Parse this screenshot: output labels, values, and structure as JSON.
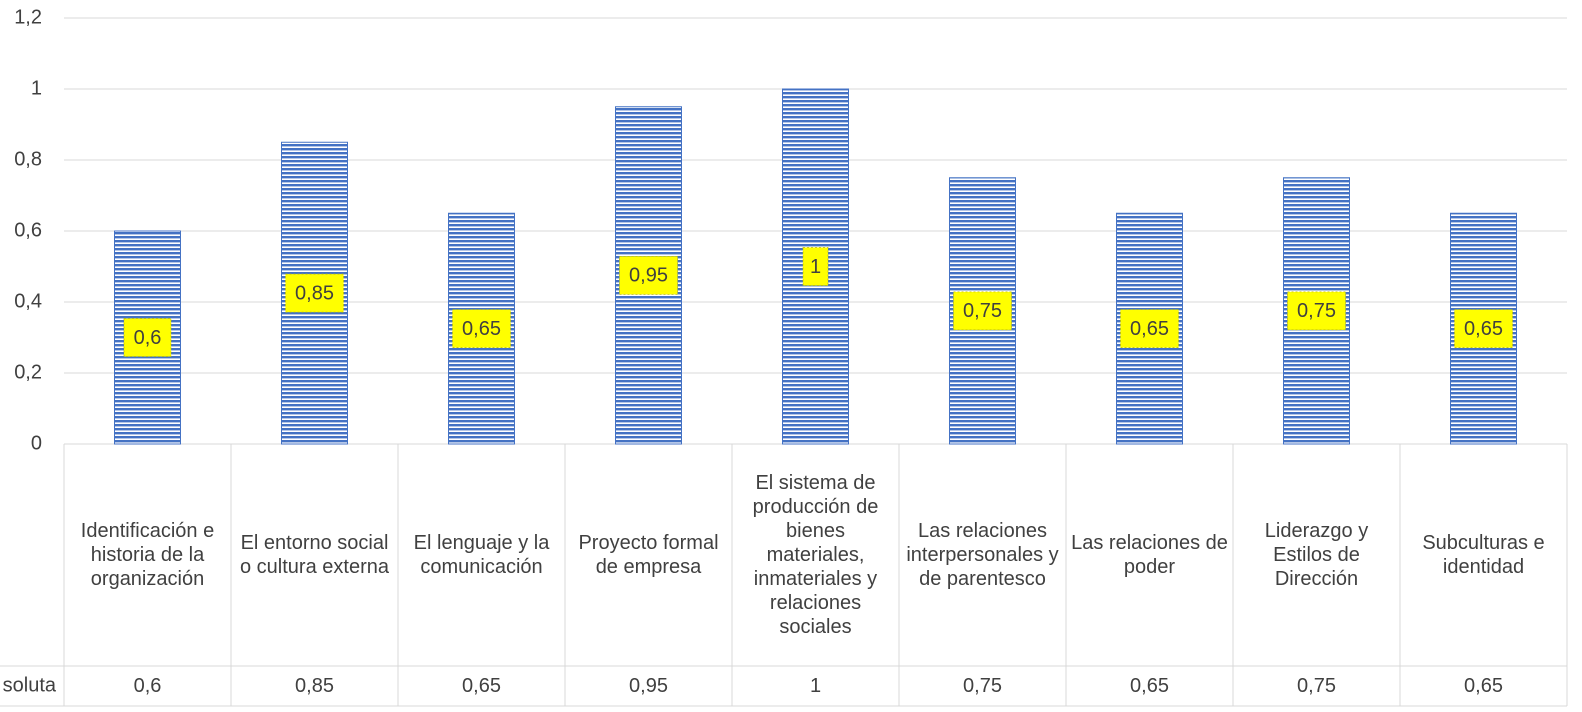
{
  "chart_data": {
    "type": "bar",
    "categories": [
      "Identificación e historia de la organización",
      "El entorno social o cultura externa",
      "El lenguaje y la comunicación",
      "Proyecto formal de empresa",
      "El sistema de producción de bienes materiales, inmateriales y relaciones sociales",
      "Las relaciones interpersonales y de parentesco",
      "Las relaciones de poder",
      "Liderazgo y Estilos de Dirección",
      "Subculturas e identidad"
    ],
    "series": [
      {
        "name": "soluta",
        "color": "#4472c4",
        "values": [
          0.6,
          0.85,
          0.65,
          0.95,
          1,
          0.75,
          0.65,
          0.75,
          0.65
        ],
        "value_labels": [
          "0,6",
          "0,85",
          "0,65",
          "0,95",
          "1",
          "0,75",
          "0,65",
          "0,75",
          "0,65"
        ]
      }
    ],
    "ylim": [
      0,
      1.2
    ],
    "yticks": [
      0,
      {
        "value": 0.2,
        "label": "0,2"
      },
      {
        "value": 0.4,
        "label": "0,4"
      },
      {
        "value": 0.6,
        "label": "0,6"
      },
      {
        "value": 0.8,
        "label": "0,8"
      },
      1,
      {
        "value": 1.2,
        "label": "1,2"
      }
    ],
    "grid": true,
    "data_table": true
  }
}
